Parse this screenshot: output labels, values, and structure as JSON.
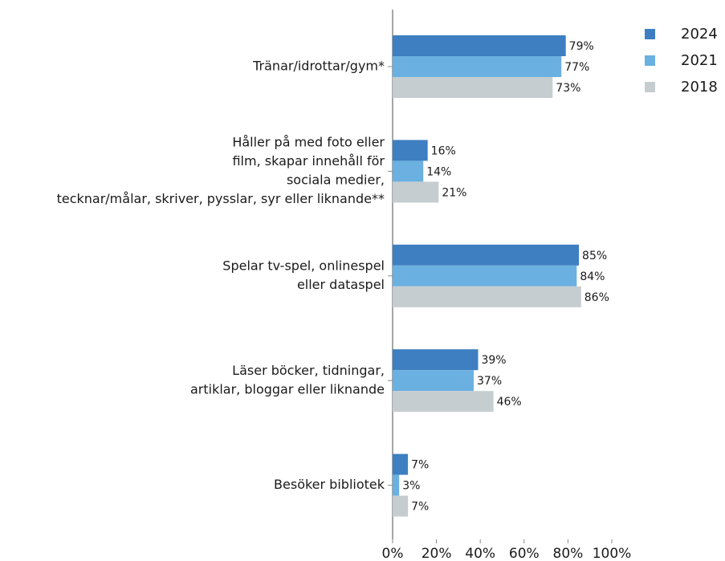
{
  "chart_data": {
    "type": "hbar",
    "categories": [
      [
        "Tränar/idrottar/gym*"
      ],
      [
        "Håller på med foto eller",
        "film, skapar innehåll för",
        "sociala medier,",
        "tecknar/målar, skriver, pysslar, syr eller liknande**"
      ],
      [
        "Spelar tv-spel, onlinespel",
        "eller dataspel"
      ],
      [
        "Läser böcker, tidningar,",
        "artiklar, bloggar eller liknande"
      ],
      [
        "Besöker bibliotek"
      ]
    ],
    "series": [
      {
        "name": "2024",
        "color": "#3d7fc1",
        "values": [
          79,
          16,
          85,
          39,
          7
        ],
        "value_labels": [
          "79%",
          "16%",
          "85%",
          "39%",
          "7%"
        ]
      },
      {
        "name": "2021",
        "color": "#6ab0e0",
        "values": [
          77,
          14,
          84,
          37,
          3
        ],
        "value_labels": [
          "77%",
          "14%",
          "84%",
          "37%",
          "3%"
        ]
      },
      {
        "name": "2018",
        "color": "#c5cdd1",
        "values": [
          73,
          21,
          86,
          46,
          7
        ],
        "value_labels": [
          "73%",
          "21%",
          "86%",
          "46%",
          "7%"
        ]
      }
    ],
    "xlim": [
      0,
      100
    ],
    "xticks": [
      {
        "value": 0,
        "label": "0%"
      },
      {
        "value": 20,
        "label": "20%"
      },
      {
        "value": 40,
        "label": "40%"
      },
      {
        "value": 60,
        "label": "60%"
      },
      {
        "value": 80,
        "label": "80%"
      },
      {
        "value": 100,
        "label": "100%"
      }
    ],
    "grid": false,
    "legend": "top-right"
  }
}
